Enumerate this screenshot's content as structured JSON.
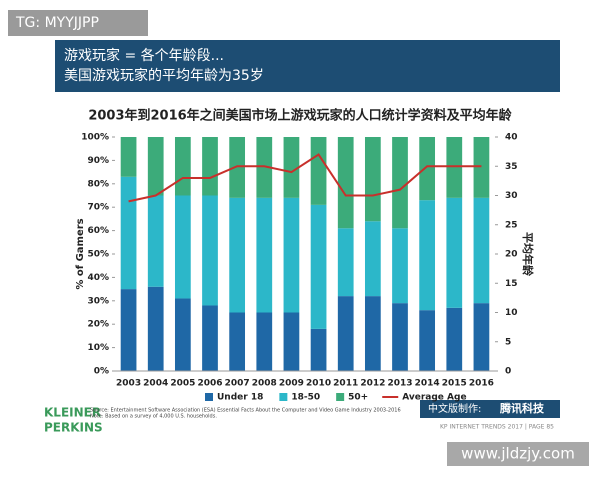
{
  "watermark": "TG: MYYJJPP",
  "header": {
    "lines": [
      "游戏玩家 = 各个年龄段...",
      "美国游戏玩家的平均年龄为35岁"
    ]
  },
  "chart_data": {
    "type": "bar",
    "stacked": true,
    "title": "2003年到2016年之间美国市场上游戏玩家的人口统计学资料及平均年龄",
    "categories": [
      "2003",
      "2004",
      "2005",
      "2006",
      "2007",
      "2008",
      "2009",
      "2010",
      "2011",
      "2012",
      "2013",
      "2014",
      "2015",
      "2016"
    ],
    "series": [
      {
        "name": "Under 18",
        "color": "#1f68a6",
        "values": [
          35,
          36,
          31,
          28,
          25,
          25,
          25,
          18,
          32,
          32,
          29,
          26,
          27,
          29
        ]
      },
      {
        "name": "18-50",
        "color": "#2cb7c9",
        "values": [
          48,
          39,
          44,
          47,
          49,
          49,
          49,
          53,
          29,
          32,
          32,
          47,
          47,
          45
        ]
      },
      {
        "name": "50+",
        "color": "#3cab7a",
        "values": [
          17,
          25,
          25,
          25,
          26,
          26,
          26,
          29,
          39,
          36,
          39,
          27,
          26,
          26
        ]
      },
      {
        "name": "Average Age",
        "color": "#c8302b",
        "type": "line",
        "axis": "y2",
        "values": [
          29,
          30,
          33,
          33,
          35,
          35,
          34,
          37,
          30,
          30,
          31,
          35,
          35,
          35
        ]
      }
    ],
    "ylabel": "% of Gamers",
    "y2label": "平均年龄",
    "ylim": [
      0,
      100
    ],
    "yticks": [
      {
        "value": 0,
        "label": "0%"
      },
      {
        "value": 10,
        "label": "10%"
      },
      {
        "value": 20,
        "label": "20%"
      },
      {
        "value": 30,
        "label": "30%"
      },
      {
        "value": 40,
        "label": "40%"
      },
      {
        "value": 50,
        "label": "50%"
      },
      {
        "value": 60,
        "label": "60%"
      },
      {
        "value": 70,
        "label": "70%"
      },
      {
        "value": 80,
        "label": "80%"
      },
      {
        "value": 90,
        "label": "90%"
      },
      {
        "value": 100,
        "label": "100%"
      }
    ],
    "y2lim": [
      0,
      40
    ],
    "y2ticks": [
      0,
      5,
      10,
      15,
      20,
      25,
      30,
      35,
      40
    ],
    "legend": "bottom"
  },
  "footer": {
    "source": "Source: Entertainment Software Association (ESA) Essential Facts About the Computer and Video Game Industry 2003-2016",
    "note": "Note: Based on a survey of 4,000 U.S. households.",
    "brand": [
      "KLEINER",
      "PERKINS"
    ],
    "credit_label": "中文版制作:",
    "credit_org": "腾讯科技",
    "page": "KP INTERNET TRENDS 2017 | PAGE 85"
  },
  "site": "www.jldzjy.com"
}
